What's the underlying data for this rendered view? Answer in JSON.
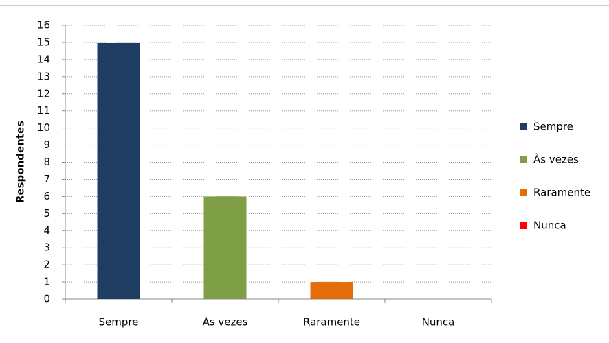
{
  "chart_data": {
    "type": "bar",
    "y_label": "Respondentes",
    "categories": [
      "Sempre",
      "Às vezes",
      "Raramente",
      "Nunca"
    ],
    "values": [
      15,
      6,
      1,
      0
    ],
    "colors": [
      "#1f3d63",
      "#7f9f46",
      "#e46c0a",
      "#ff0000"
    ],
    "ylim": [
      0,
      16
    ],
    "yticks": [
      0,
      1,
      2,
      3,
      4,
      5,
      6,
      7,
      8,
      9,
      10,
      11,
      12,
      13,
      14,
      15,
      16
    ],
    "grid": true,
    "legend": "right"
  }
}
